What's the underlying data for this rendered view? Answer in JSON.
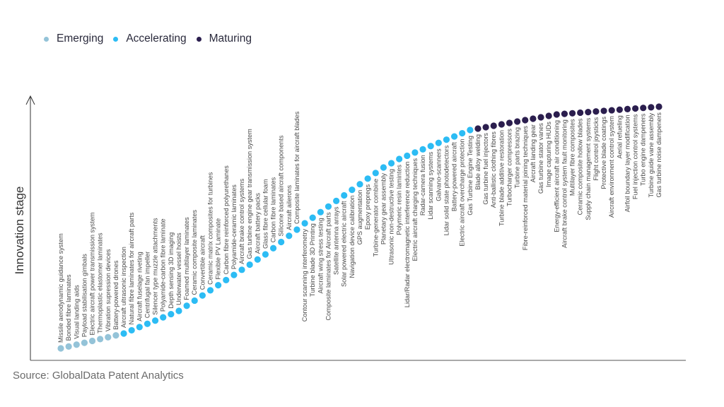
{
  "chart_data": {
    "type": "scatter",
    "title": "",
    "ylabel": "Innovation stage",
    "xlabel": "",
    "legend_position": "top-left",
    "grid": false,
    "legend": [
      {
        "key": "emerging",
        "label": "Emerging",
        "color": "#94c3d8"
      },
      {
        "key": "accelerating",
        "label": "Accelerating",
        "color": "#2cbcf4"
      },
      {
        "key": "maturing",
        "label": "Maturing",
        "color": "#2b1e4e"
      }
    ],
    "items": [
      [
        "Missile aerodynamic guidance system",
        "emerging"
      ],
      [
        "Bonded fibre laminates",
        "emerging"
      ],
      [
        "Visual landing aids",
        "emerging"
      ],
      [
        "Payload stabilisation gimbals",
        "emerging"
      ],
      [
        "Electric aircraft power transmission system",
        "emerging"
      ],
      [
        "Thermoplastic elastomer laminates",
        "emerging"
      ],
      [
        "Vibration supression devices",
        "emerging"
      ],
      [
        "Battery-powered drones",
        "emerging"
      ],
      [
        "Aircraft ultrasonic inspection",
        "accelerating"
      ],
      [
        "Natural fibre laminates for aircraft parts",
        "accelerating"
      ],
      [
        "Aircraft fuselage riveting",
        "accelerating"
      ],
      [
        "Centrifugal fan impeller",
        "accelerating"
      ],
      [
        "Silencer type muzzle attachments",
        "accelerating"
      ],
      [
        "Polyamide-carbon fibre laminate",
        "accelerating"
      ],
      [
        "Depth sensing 3D imaging",
        "accelerating"
      ],
      [
        "Underwater vessel hoists",
        "accelerating"
      ],
      [
        "Foamed multilayer laminates",
        "accelerating"
      ],
      [
        "Ceramic composite laminates",
        "accelerating"
      ],
      [
        "Convertible aircraft",
        "accelerating"
      ],
      [
        "Ceramic matrix composites for turbines",
        "accelerating"
      ],
      [
        "Flexible PV Laminate",
        "accelerating"
      ],
      [
        "Carbon fibre reinforced polyurethanes",
        "accelerating"
      ],
      [
        "Polyamide-ceramic laminates",
        "accelerating"
      ],
      [
        "Aircraft brake control systems",
        "accelerating"
      ],
      [
        "Gas turbine engine gear transmission system",
        "accelerating"
      ],
      [
        "Aircraft battery packs",
        "accelerating"
      ],
      [
        "Glass fibre cellular foam",
        "accelerating"
      ],
      [
        "Carbon fibre laminates",
        "accelerating"
      ],
      [
        "Silicone based aircraft components",
        "accelerating"
      ],
      [
        "Aircraft ailerons",
        "accelerating"
      ],
      [
        "Composite laminates for aircraft blades",
        "accelerating"
      ],
      [
        "Contour scanning interferometry",
        "accelerating"
      ],
      [
        "Turbine blade 3D Printing",
        "accelerating"
      ],
      [
        "Aircraft wing stress testing",
        "accelerating"
      ],
      [
        "Composite laminates for Aircraft parts",
        "accelerating"
      ],
      [
        "Satellite antenna arrays",
        "accelerating"
      ],
      [
        "Solar powered electric aircraft",
        "accelerating"
      ],
      [
        "Navigation device calibration",
        "accelerating"
      ],
      [
        "GPS augmentation",
        "accelerating"
      ],
      [
        "Epoxy prepregs",
        "accelerating"
      ],
      [
        "Turbine-generator combine",
        "accelerating"
      ],
      [
        "Planetary gear assembly",
        "accelerating"
      ],
      [
        "Ultrasonic non-destructive testing",
        "accelerating"
      ],
      [
        "Polymeric resin lamintes",
        "accelerating"
      ],
      [
        "Lidar/Radar electromagnetic interference reduction",
        "accelerating"
      ],
      [
        "Electric aircraft charging techniques",
        "accelerating"
      ],
      [
        "Radar-camera fusion",
        "accelerating"
      ],
      [
        "Lidar scanning systems",
        "accelerating"
      ],
      [
        "Galvano-scanners",
        "accelerating"
      ],
      [
        "Lidar solid state photodetectors",
        "accelerating"
      ],
      [
        "Battery-powered aircraft",
        "accelerating"
      ],
      [
        "Electric aircraft overcharge protection",
        "accelerating"
      ],
      [
        "Gas Turbine Engine Testing",
        "accelerating"
      ],
      [
        "Blade alloy welding",
        "maturing"
      ],
      [
        "Gas turbine fuel injectors",
        "maturing"
      ],
      [
        "Anti-ballistic clothing fibres",
        "maturing"
      ],
      [
        "Turbine blade additive restoration",
        "maturing"
      ],
      [
        "Turbocharger compressors",
        "maturing"
      ],
      [
        "Turbine parts brazing",
        "maturing"
      ],
      [
        "Fibre-reinforced material joining techniques",
        "maturing"
      ],
      [
        "Aircraft landing gear",
        "maturing"
      ],
      [
        "Gas turbine stator vanes",
        "maturing"
      ],
      [
        "Image capturing HUDs",
        "maturing"
      ],
      [
        "Energy-efficient aircraft air conditioning",
        "maturing"
      ],
      [
        "Aircraft brake control system fault monitoring",
        "maturing"
      ],
      [
        "Multilayer fibre composites",
        "maturing"
      ],
      [
        "Ceramic composite hollow blades",
        "maturing"
      ],
      [
        "Supply chain management systems",
        "maturing"
      ],
      [
        "Flight control joysticks",
        "maturing"
      ],
      [
        "Protective blade coatings",
        "maturing"
      ],
      [
        "Aircraft environment control system",
        "maturing"
      ],
      [
        "Aerial refueling",
        "maturing"
      ],
      [
        "Airfoil boundary layer modification",
        "maturing"
      ],
      [
        "Fuel injection control systems",
        "maturing"
      ],
      [
        "Turbo engine dampeners",
        "maturing"
      ],
      [
        "Turbine guide vane assembly",
        "maturing"
      ],
      [
        "Gas turbine noise dampeners",
        "maturing"
      ]
    ]
  },
  "source": "Source: GlobalData Patent Analytics"
}
